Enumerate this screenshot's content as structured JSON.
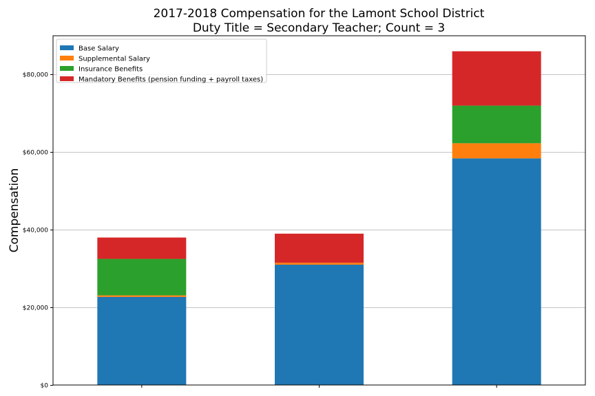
{
  "chart_data": {
    "type": "bar",
    "stacked": true,
    "title_lines": [
      "2017-2018 Compensation for the Lamont School District",
      "Duty Title = Secondary Teacher; Count = 3"
    ],
    "xlabel": "",
    "ylabel": "Compensation",
    "categories": [
      "",
      "",
      ""
    ],
    "ylim": [
      0,
      90000
    ],
    "yticks": [
      0,
      20000,
      40000,
      60000,
      80000
    ],
    "ytick_labels": [
      "$0",
      "$20,000",
      "$40,000",
      "$60,000",
      "$80,000"
    ],
    "grid": "horizontal",
    "legend_position": "top-left",
    "series": [
      {
        "name": "Base Salary",
        "color": "#1f77b4",
        "values": [
          22700,
          31000,
          58400
        ]
      },
      {
        "name": "Supplemental Salary",
        "color": "#ff7f0e",
        "values": [
          400,
          500,
          3900
        ]
      },
      {
        "name": "Insurance Benefits",
        "color": "#2ca02c",
        "values": [
          9400,
          0,
          9700
        ]
      },
      {
        "name": "Mandatory Benefits (pension funding + payroll taxes)",
        "color": "#d62728",
        "values": [
          5500,
          7500,
          14000
        ]
      }
    ]
  }
}
